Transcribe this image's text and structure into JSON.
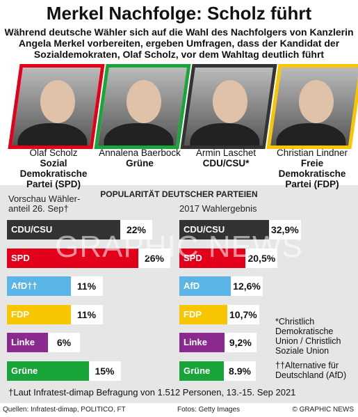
{
  "title": "Merkel Nachfolge: Scholz führt",
  "subtitle": "Während deutsche Wähler sich auf die Wahl des Nachfolgers von Kanzlerin Angela Merkel vorbereiten, ergeben Umfragen, dass der Kandidat der Sozialdemokraten, Olaf Scholz, vor dem Wahltag deutlich führt",
  "candidates": [
    {
      "name": "Olaf Scholz",
      "party": "Sozial Demokratische Partei (SPD)",
      "color": "#e3001b"
    },
    {
      "name": "Annalena Baerbock",
      "party": "Grüne",
      "color": "#1aa53a"
    },
    {
      "name": "Armin Laschet",
      "party": "CDU/CSU*",
      "color": "#333333"
    },
    {
      "name": "Christian Lindner",
      "party": "Freie Demokratische Partei (FDP)",
      "color": "#f7c600"
    }
  ],
  "chart_header": "POPULARITÄT DEUTSCHER PARTEIEN",
  "chart_data": [
    {
      "type": "bar",
      "title": "Vorschau Wähler-anteil 26. Sep†",
      "categories": [
        "CDU/CSU",
        "SPD",
        "AfD††",
        "FDP",
        "Linke",
        "Grüne"
      ],
      "values": [
        22,
        26,
        11,
        11,
        6,
        15
      ],
      "value_labels": [
        "22%",
        "26%",
        "11%",
        "11%",
        "6%",
        "15%"
      ],
      "colors": [
        "#333333",
        "#e3001b",
        "#5ab4e6",
        "#f7c600",
        "#8b2a8e",
        "#1aa53a"
      ]
    },
    {
      "type": "bar",
      "title": "2017 Wahlergebnis",
      "categories": [
        "CDU/CSU",
        "SPD",
        "AfD",
        "FDP",
        "Linke",
        "Grüne"
      ],
      "values": [
        32.9,
        20.5,
        12.6,
        10.7,
        9.2,
        8.9
      ],
      "value_labels": [
        "32,9%",
        "20,5%",
        "12,6%",
        "10,7%",
        "9,2%",
        "8.9%"
      ],
      "colors": [
        "#333333",
        "#e3001b",
        "#5ab4e6",
        "#f7c600",
        "#8b2a8e",
        "#1aa53a"
      ]
    }
  ],
  "notes": [
    "*Christlich Demokratische Union / Christlich Soziale Union",
    "††Alternative für Deutschland (AfD)"
  ],
  "footnote": "†Laut Infratest-dimap Befragung von 1.512 Personen, 13.-15. Sep 2021",
  "footer": {
    "sources": "Quellen: Infratest-dimap, POLITICO, FT",
    "photos": "Fotos: Getty Images",
    "credit": "© GRAPHIC NEWS"
  },
  "watermark": "GRAPHIC NEWS"
}
